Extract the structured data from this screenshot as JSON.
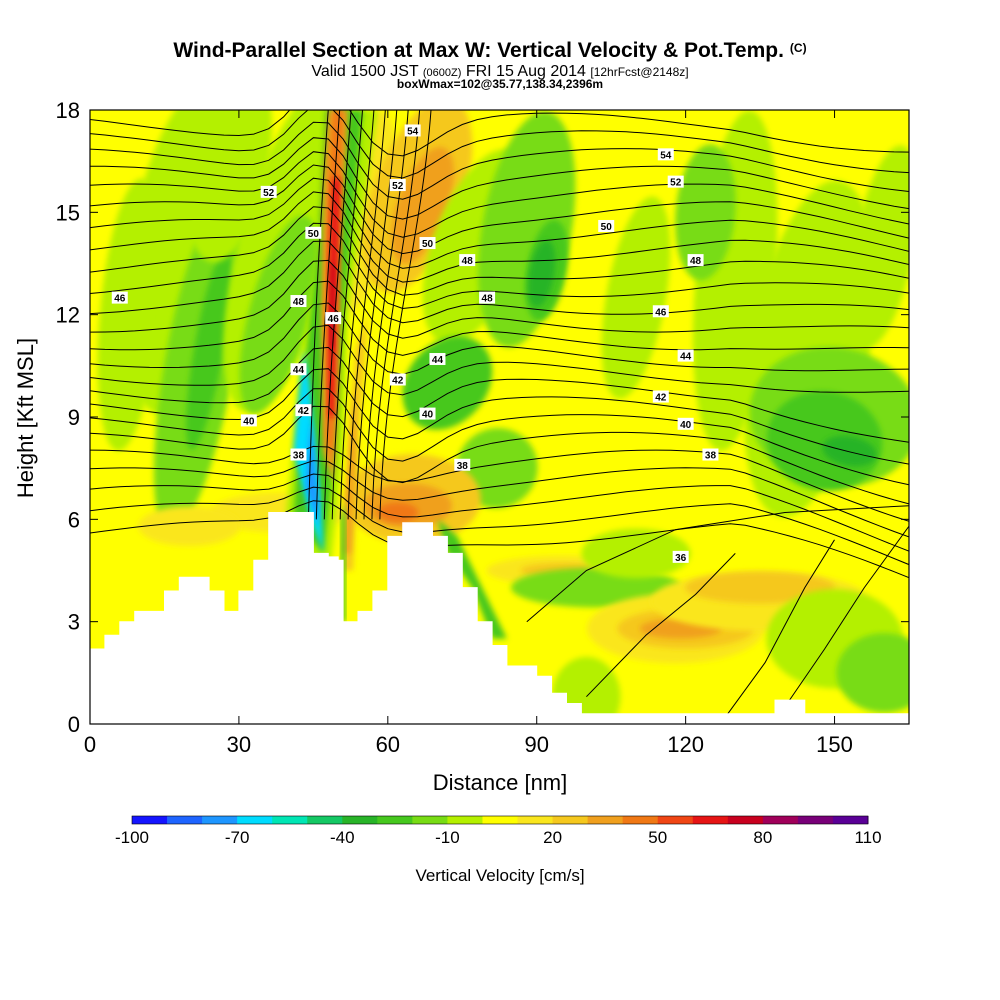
{
  "chart_data": {
    "type": "heatmap",
    "title": "Wind-Parallel Section at Max W: Vertical Velocity & Pot.Temp.",
    "title_mark": "(C)",
    "subtitle_parts": [
      "Valid 1500 JST ",
      "(0600Z)",
      " FRI 15 Aug 2014 ",
      "[12hrFcst@2148z]"
    ],
    "subtitle2": "boxWmax=102@35.77,138.34,2396m",
    "xlabel": "Distance [nm]",
    "ylabel": "Height [Kft MSL]",
    "xlim": [
      0,
      165
    ],
    "ylim": [
      0,
      18
    ],
    "x_ticks": [
      0,
      30,
      60,
      90,
      120,
      150
    ],
    "y_ticks": [
      0,
      3,
      6,
      9,
      12,
      15,
      18
    ],
    "grid": false,
    "colorbar": {
      "label": "Vertical Velocity [cm/s]",
      "tick_labels": [
        -100,
        -70,
        -40,
        -10,
        20,
        50,
        80,
        110
      ],
      "min": -100,
      "max": 110,
      "colors": [
        "#1414ff",
        "#1e64ff",
        "#1e96ff",
        "#00dcff",
        "#00e6b4",
        "#14c864",
        "#28b428",
        "#46c81e",
        "#78dc14",
        "#b4f000",
        "#ffff00",
        "#fae61e",
        "#f5c81e",
        "#f0a01e",
        "#f07814",
        "#f04614",
        "#e61414",
        "#c8001e",
        "#a0005a",
        "#780078",
        "#5a0096"
      ]
    },
    "contour_variable": "Pot.Temp. (C)",
    "contour_labels": [
      {
        "value": "54",
        "at": [
          65,
          17.4
        ]
      },
      {
        "value": "54",
        "at": [
          116,
          16.7
        ]
      },
      {
        "value": "52",
        "at": [
          36,
          15.6
        ]
      },
      {
        "value": "52",
        "at": [
          62,
          15.8
        ]
      },
      {
        "value": "52",
        "at": [
          118,
          15.9
        ]
      },
      {
        "value": "50",
        "at": [
          45,
          14.4
        ]
      },
      {
        "value": "50",
        "at": [
          68,
          14.1
        ]
      },
      {
        "value": "50",
        "at": [
          104,
          14.6
        ]
      },
      {
        "value": "48",
        "at": [
          76,
          13.6
        ]
      },
      {
        "value": "48",
        "at": [
          122,
          13.6
        ]
      },
      {
        "value": "48",
        "at": [
          42,
          12.4
        ]
      },
      {
        "value": "48",
        "at": [
          80,
          12.5
        ]
      },
      {
        "value": "46",
        "at": [
          6,
          12.5
        ]
      },
      {
        "value": "46",
        "at": [
          49,
          11.9
        ]
      },
      {
        "value": "46",
        "at": [
          115,
          12.1
        ]
      },
      {
        "value": "44",
        "at": [
          42,
          10.4
        ]
      },
      {
        "value": "44",
        "at": [
          70,
          10.7
        ]
      },
      {
        "value": "44",
        "at": [
          120,
          10.8
        ]
      },
      {
        "value": "42",
        "at": [
          62,
          10.1
        ]
      },
      {
        "value": "42",
        "at": [
          43,
          9.2
        ]
      },
      {
        "value": "42",
        "at": [
          115,
          9.6
        ]
      },
      {
        "value": "40",
        "at": [
          32,
          8.9
        ]
      },
      {
        "value": "40",
        "at": [
          68,
          9.1
        ]
      },
      {
        "value": "40",
        "at": [
          120,
          8.8
        ]
      },
      {
        "value": "38",
        "at": [
          42,
          7.9
        ]
      },
      {
        "value": "38",
        "at": [
          75,
          7.6
        ]
      },
      {
        "value": "38",
        "at": [
          125,
          7.9
        ]
      },
      {
        "value": "36",
        "at": [
          119,
          4.9
        ]
      }
    ]
  }
}
